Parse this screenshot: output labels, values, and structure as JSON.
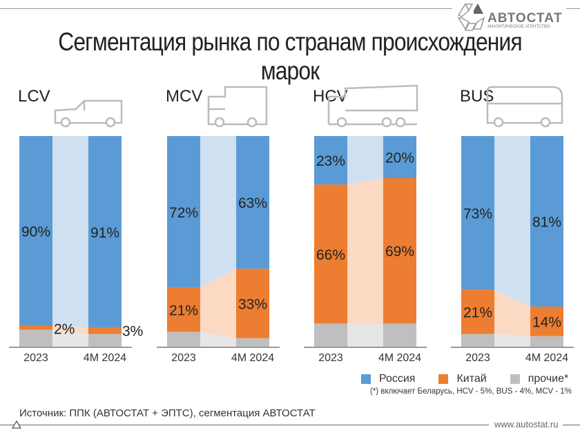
{
  "title": "Сегментация рынка по странам происхождения марок",
  "logo": {
    "name": "АВТОСТАТ",
    "subtitle": "АНАЛИТИЧЕСКОЕ АГЕНТСТВО"
  },
  "legend": [
    {
      "label": "Россия",
      "color": "#5b9bd5"
    },
    {
      "label": "Китай",
      "color": "#ed7d31"
    },
    {
      "label": "прочие*",
      "color": "#bfbfbf"
    }
  ],
  "note": "(*) включает Беларусь, HCV - 5%,  BUS - 4%, MCV - 1%",
  "source": "Источник: ППК (АВТОСТАТ + ЭПТС), сегментация АВТОСТАТ",
  "website": "www.autostat.ru",
  "chart_data": [
    {
      "type": "bar",
      "stacked": true,
      "title": "LCV",
      "categories": [
        "2023",
        "4M 2024"
      ],
      "ylim": [
        0,
        100
      ],
      "series": [
        {
          "name": "Россия",
          "values": [
            90,
            91
          ]
        },
        {
          "name": "Китай",
          "values": [
            2,
            3
          ]
        },
        {
          "name": "прочие*",
          "values": [
            8,
            6
          ]
        }
      ],
      "data_labels": [
        [
          "90%",
          "2%"
        ],
        [
          "91%",
          "3%"
        ]
      ]
    },
    {
      "type": "bar",
      "stacked": true,
      "title": "MCV",
      "categories": [
        "2023",
        "4M 2024"
      ],
      "ylim": [
        0,
        100
      ],
      "series": [
        {
          "name": "Россия",
          "values": [
            72,
            63
          ]
        },
        {
          "name": "Китай",
          "values": [
            21,
            33
          ]
        },
        {
          "name": "прочие*",
          "values": [
            7,
            4
          ]
        }
      ],
      "data_labels": [
        [
          "72%",
          "21%"
        ],
        [
          "63%",
          "33%"
        ]
      ]
    },
    {
      "type": "bar",
      "stacked": true,
      "title": "HCV",
      "categories": [
        "2023",
        "4M 2024"
      ],
      "ylim": [
        0,
        100
      ],
      "series": [
        {
          "name": "Россия",
          "values": [
            23,
            20
          ]
        },
        {
          "name": "Китай",
          "values": [
            66,
            69
          ]
        },
        {
          "name": "прочие*",
          "values": [
            11,
            11
          ]
        }
      ],
      "data_labels": [
        [
          "23%",
          "66%"
        ],
        [
          "20%",
          "69%"
        ]
      ]
    },
    {
      "type": "bar",
      "stacked": true,
      "title": "BUS",
      "categories": [
        "2023",
        "4M 2024"
      ],
      "ylim": [
        0,
        100
      ],
      "series": [
        {
          "name": "Россия",
          "values": [
            73,
            81
          ]
        },
        {
          "name": "Китай",
          "values": [
            21,
            14
          ]
        },
        {
          "name": "прочие*",
          "values": [
            6,
            5
          ]
        }
      ],
      "data_labels": [
        [
          "73%",
          "21%"
        ],
        [
          "81%",
          "14%"
        ]
      ]
    }
  ]
}
